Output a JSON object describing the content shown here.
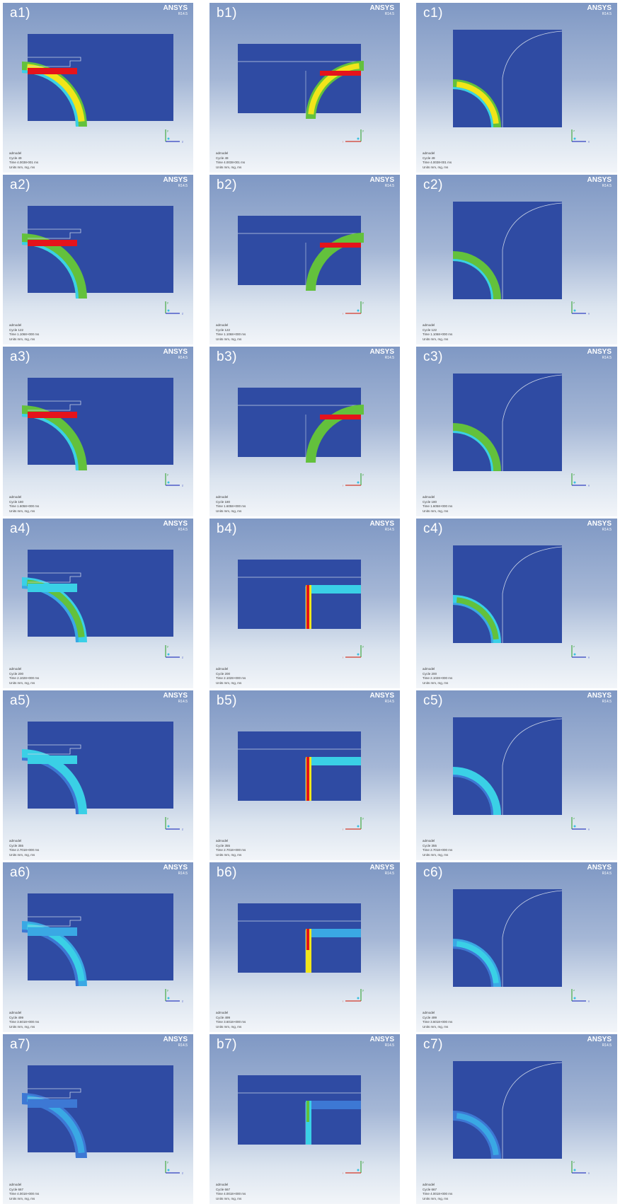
{
  "brand": {
    "name": "ANSYS",
    "version": "R14.5"
  },
  "info_template": {
    "model_label": "admodel",
    "units": "Units mm, mg, ms"
  },
  "axis_letters": {
    "y": "y",
    "z": "z",
    "x": "x"
  },
  "colors": {
    "background_top": "#7f98c4",
    "background_bottom": "#f2f5f9",
    "domain_fill": "#2f4ba3",
    "contour_red": "#e5131b",
    "contour_orange": "#f29a1a",
    "contour_yellow": "#f1e51a",
    "contour_green": "#63c13c",
    "contour_cyan": "#3ad0e6",
    "contour_lightblue": "#3aa8e4",
    "contour_midblue": "#3d78d4",
    "outline": "#c8d2e6"
  },
  "panels": [
    {
      "label": "a1)",
      "cycle": "Cycle 49",
      "time": "Time 4.0038-001 ms"
    },
    {
      "label": "b1)",
      "cycle": "Cycle 49",
      "time": "Time 4.0038-001 ms"
    },
    {
      "label": "c1)",
      "cycle": "Cycle 49",
      "time": "Time 4.0038-001 ms"
    },
    {
      "label": "a2)",
      "cycle": "Cycle 122",
      "time": "Time 1.1068+000 ms"
    },
    {
      "label": "b2)",
      "cycle": "Cycle 122",
      "time": "Time 1.1068+000 ms"
    },
    {
      "label": "c2)",
      "cycle": "Cycle 122",
      "time": "Time 1.1068+000 ms"
    },
    {
      "label": "a3)",
      "cycle": "Cycle 180",
      "time": "Time 1.6058+000 ms"
    },
    {
      "label": "b3)",
      "cycle": "Cycle 180",
      "time": "Time 1.6058+000 ms"
    },
    {
      "label": "c3)",
      "cycle": "Cycle 180",
      "time": "Time 1.6058+000 ms"
    },
    {
      "label": "a4)",
      "cycle": "Cycle 200",
      "time": "Time 2.1028+000 ms"
    },
    {
      "label": "b4)",
      "cycle": "Cycle 200",
      "time": "Time 2.1028+000 ms"
    },
    {
      "label": "c4)",
      "cycle": "Cycle 200",
      "time": "Time 2.1028+000 ms"
    },
    {
      "label": "a5)",
      "cycle": "Cycle 355",
      "time": "Time 2.7018+000 ms"
    },
    {
      "label": "b5)",
      "cycle": "Cycle 355",
      "time": "Time 2.7018+000 ms"
    },
    {
      "label": "c5)",
      "cycle": "Cycle 355",
      "time": "Time 2.7018+000 ms"
    },
    {
      "label": "a6)",
      "cycle": "Cycle 499",
      "time": "Time 3.6018+000 ms"
    },
    {
      "label": "b6)",
      "cycle": "Cycle 499",
      "time": "Time 3.6018+000 ms"
    },
    {
      "label": "c6)",
      "cycle": "Cycle 499",
      "time": "Time 3.6018+000 ms"
    },
    {
      "label": "a7)",
      "cycle": "Cycle 667",
      "time": "Time 4.0018+000 ms"
    },
    {
      "label": "b7)",
      "cycle": "Cycle 667",
      "time": "Time 4.0018+000 ms"
    },
    {
      "label": "c7)",
      "cycle": "Cycle 667",
      "time": "Time 4.0018+000 ms"
    }
  ]
}
